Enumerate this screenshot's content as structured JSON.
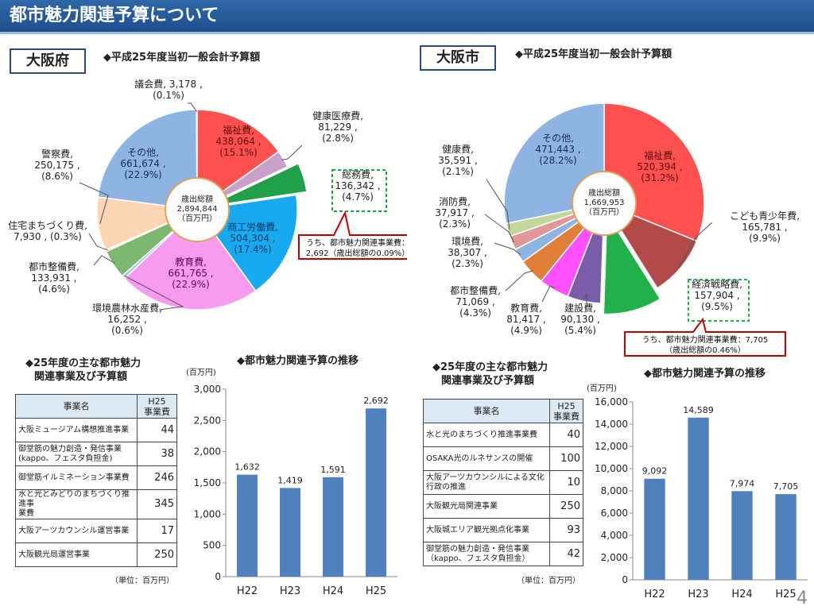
{
  "title": "都市魅力関連予算について",
  "osaka_pref": {
    "region_label": "大阪府",
    "pie_heading": "◆平成25年度当初一般会計予算額",
    "center": [
      "歳出総額",
      "2,894,844",
      "（百万円）"
    ],
    "callout": [
      "うち、都市魅力関連事業費：",
      "2,692（歳出総額の0.09%）"
    ],
    "list_heading": [
      "◆25年度の主な都市魅力",
      "関連事業及び予算額"
    ],
    "bar_heading": "◆都市魅力関連予算の推移",
    "table": {
      "col_name": "事業名",
      "col_value": [
        "H25",
        "事業費"
      ],
      "rows": [
        {
          "name": [
            "大阪ミュージアム構想推進事業"
          ],
          "value": "44"
        },
        {
          "name": [
            "御堂筋の魅力創造・発信事業",
            "(kappo、フェスタ負担金)"
          ],
          "value": "38"
        },
        {
          "name": [
            "御堂筋イルミネーション事業費"
          ],
          "value": "246"
        },
        {
          "name": [
            "水と光とみどりのまちづくり推進事",
            "業費"
          ],
          "value": "345"
        },
        {
          "name": [
            "大阪アーツカウンシル運営事業"
          ],
          "value": "17"
        },
        {
          "name": [
            "大阪観光局運営事業"
          ],
          "value": "250"
        }
      ],
      "unit_note": "（単位：百万円）"
    }
  },
  "osaka_city": {
    "region_label": "大阪市",
    "pie_heading": "◆平成25年度当初一般会計予算額",
    "center": [
      "歳出総額",
      "1,669,953",
      "（百万円）"
    ],
    "callout": [
      "うち、都市魅力関連事業費：7,705",
      "（歳出総額の0.46%）"
    ],
    "list_heading": [
      "◆25年度の主な都市魅力",
      "関連事業及び予算額"
    ],
    "bar_heading": "◆都市魅力関連予算の推移",
    "table": {
      "col_name": "事業名",
      "col_value": [
        "H25",
        "事業費"
      ],
      "rows": [
        {
          "name": [
            "水と光のまちづくり推進事業費"
          ],
          "value": "40"
        },
        {
          "name": [
            "OSAKA光のルネサンスの開催"
          ],
          "value": "100"
        },
        {
          "name": [
            "大阪アーツカウンシルによる文化",
            "行政の推進"
          ],
          "value": "10"
        },
        {
          "name": [
            "大阪観光局関連事業"
          ],
          "value": "250"
        },
        {
          "name": [
            "大阪城エリア観光拠点化事業"
          ],
          "value": "93"
        },
        {
          "name": [
            "御堂筋の魅力創造・発信事業",
            "（kappo、フェスタ負担金）"
          ],
          "value": "42"
        }
      ],
      "unit_note": "（単位：百万円）"
    }
  },
  "page_number": "4",
  "chart_data": [
    {
      "type": "pie",
      "slices": [
        {
          "label": [
            "福祉費,",
            "438,064 ,",
            "(15.1%)"
          ],
          "value": 438064,
          "color": "#ff5050"
        },
        {
          "label": [
            "健康医療費,",
            "81,229 ,",
            "(2.8%)"
          ],
          "value": 81229,
          "color": "#c8a0c8"
        },
        {
          "label": [
            "総務費,",
            "136,342 ,",
            "(4.7%)"
          ],
          "value": 136342,
          "color": "#21a04a",
          "exploded": true
        },
        {
          "label": [
            "商工労働費,",
            "504,304 ,",
            "(17.4%)"
          ],
          "value": 504304,
          "color": "#18aaf0"
        },
        {
          "label": [
            "教育費,",
            "661,765 ,",
            "(22.9%)"
          ],
          "value": 661765,
          "color": "#f89af0"
        },
        {
          "label": [
            "環境農林水産費,",
            "16,252 ,",
            "(0.6%)"
          ],
          "value": 16252,
          "color": "#9fc8e8"
        },
        {
          "label": [
            "都市整備費,",
            "133,931 ,",
            "(4.6%)"
          ],
          "value": 133931,
          "color": "#7cb870"
        },
        {
          "label": [
            "住宅まちづくり費,",
            "7,930 , (0.3%)"
          ],
          "value": 7930,
          "color": "#e0c0a0"
        },
        {
          "label": [
            "警察費,",
            "250,175 ,",
            "(8.6%)"
          ],
          "value": 250175,
          "color": "#fcd5b4"
        },
        {
          "label": [
            "その他,",
            "661,674 ,",
            "(22.9%)"
          ],
          "value": 661674,
          "color": "#8db4e2"
        },
        {
          "label": [
            "議会費, 3,178 ,",
            "(0.1%)"
          ],
          "value": 3178,
          "color": "#ff8080"
        }
      ]
    },
    {
      "type": "pie",
      "slices": [
        {
          "label": [
            "福祉費,",
            "520,394 ,",
            "(31.2%)"
          ],
          "value": 520394,
          "color": "#ff5050"
        },
        {
          "label": [
            "こども青少年費,",
            "165,781 ,",
            "(9.9%)"
          ],
          "value": 165781,
          "color": "#b34a4a"
        },
        {
          "label": [
            "経済戦略費,",
            "157,904 ,",
            "(9.5%)"
          ],
          "value": 157904,
          "color": "#21b04a",
          "exploded": true
        },
        {
          "label": [
            "建設費,",
            "90,130 ,",
            "(5.4%)"
          ],
          "value": 90130,
          "color": "#7a5ca8"
        },
        {
          "label": [
            "教育費,",
            "81,417 ,",
            "(4.9%)"
          ],
          "value": 81417,
          "color": "#ff50ff"
        },
        {
          "label": [
            "都市整備費,",
            "71,069 ,",
            "(4.3%)"
          ],
          "value": 71069,
          "color": "#e08038"
        },
        {
          "label": [
            "環境費,",
            "38,307 ,",
            "(2.3%)"
          ],
          "value": 38307,
          "color": "#8db4e2"
        },
        {
          "label": [
            "消防費,",
            "37,917 ,",
            "(2.3%)"
          ],
          "value": 37917,
          "color": "#e09898"
        },
        {
          "label": [
            "健康費,",
            "35,591 ,",
            "(2.1%)"
          ],
          "value": 35591,
          "color": "#c4d79b"
        },
        {
          "label": [
            "その他,",
            "471,443 ,",
            "(28.2%)"
          ],
          "value": 471443,
          "color": "#8db4e2"
        }
      ]
    },
    {
      "type": "bar",
      "categories": [
        "H22",
        "H23",
        "H24",
        "H25"
      ],
      "values": [
        1632,
        1419,
        1591,
        2692
      ],
      "value_labels": [
        "1,632",
        "1,419",
        "1,591",
        "2,692"
      ],
      "ylabel": "(百万円)",
      "ylim": [
        0,
        3000
      ],
      "yticks": [
        0,
        500,
        1000,
        1500,
        2000,
        2500,
        3000
      ],
      "ytick_labels": [
        "0",
        "500",
        "1,000",
        "1,500",
        "2,000",
        "2,500",
        "3,000"
      ],
      "grid": false,
      "color": "#4f81bd"
    },
    {
      "type": "bar",
      "categories": [
        "H22",
        "H23",
        "H24",
        "H25"
      ],
      "values": [
        9092,
        14589,
        7974,
        7705
      ],
      "value_labels": [
        "9,092",
        "14,589",
        "7,974",
        "7,705"
      ],
      "ylabel": "(百万円)",
      "ylim": [
        0,
        16000
      ],
      "yticks": [
        0,
        2000,
        4000,
        6000,
        8000,
        10000,
        12000,
        14000,
        16000
      ],
      "ytick_labels": [
        "0",
        "2,000",
        "4,000",
        "6,000",
        "8,000",
        "10,000",
        "12,000",
        "14,000",
        "16,000"
      ],
      "grid": false,
      "color": "#4f81bd"
    }
  ]
}
